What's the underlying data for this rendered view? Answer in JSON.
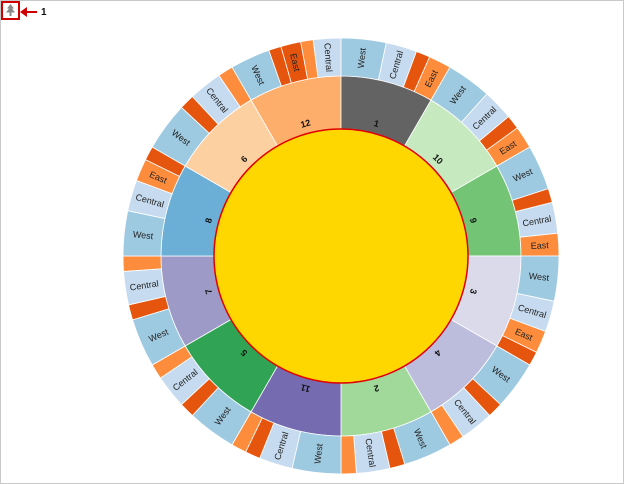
{
  "callout": {
    "number": "1",
    "icon": "tree-icon"
  },
  "chart_data": {
    "type": "sunburst",
    "center_color": "#FFD700",
    "center_border": "#E00000",
    "groups": [
      {
        "label": "12",
        "color": "#FDAE6B",
        "children": [
          {
            "label": "West",
            "color": "#9ECAE1"
          },
          {
            "label": "",
            "color": "#E6550D"
          },
          {
            "label": "East",
            "color": "#E6550D"
          },
          {
            "label": "",
            "color": "#FD8D3C"
          },
          {
            "label": "Central",
            "color": "#C6DBEF"
          }
        ]
      },
      {
        "label": "1",
        "color": "#636363",
        "children": [
          {
            "label": "West",
            "color": "#9ECAE1"
          },
          {
            "label": "Central",
            "color": "#C6DBEF"
          },
          {
            "label": "",
            "color": "#E6550D"
          },
          {
            "label": "East",
            "color": "#FD8D3C"
          }
        ]
      },
      {
        "label": "10",
        "color": "#C7E9C0",
        "children": [
          {
            "label": "West",
            "color": "#9ECAE1"
          },
          {
            "label": "Central",
            "color": "#C6DBEF"
          },
          {
            "label": "",
            "color": "#E6550D"
          },
          {
            "label": "East",
            "color": "#FD8D3C"
          }
        ]
      },
      {
        "label": "9",
        "color": "#74C476",
        "children": [
          {
            "label": "West",
            "color": "#9ECAE1"
          },
          {
            "label": "",
            "color": "#E6550D"
          },
          {
            "label": "Central",
            "color": "#C6DBEF"
          },
          {
            "label": "East",
            "color": "#FD8D3C"
          }
        ]
      },
      {
        "label": "3",
        "color": "#DADAEB",
        "children": [
          {
            "label": "West",
            "color": "#9ECAE1"
          },
          {
            "label": "Central",
            "color": "#C6DBEF"
          },
          {
            "label": "East",
            "color": "#FD8D3C"
          },
          {
            "label": "",
            "color": "#E6550D"
          }
        ]
      },
      {
        "label": "4",
        "color": "#BCBDDC",
        "children": [
          {
            "label": "West",
            "color": "#9ECAE1"
          },
          {
            "label": "",
            "color": "#E6550D"
          },
          {
            "label": "Central",
            "color": "#C6DBEF"
          },
          {
            "label": "",
            "color": "#FD8D3C"
          }
        ]
      },
      {
        "label": "2",
        "color": "#A1D99B",
        "children": [
          {
            "label": "West",
            "color": "#9ECAE1"
          },
          {
            "label": "",
            "color": "#E6550D"
          },
          {
            "label": "Central",
            "color": "#C6DBEF"
          },
          {
            "label": "",
            "color": "#FD8D3C"
          }
        ]
      },
      {
        "label": "11",
        "color": "#756BB1",
        "children": [
          {
            "label": "West",
            "color": "#9ECAE1"
          },
          {
            "label": "Central",
            "color": "#C6DBEF"
          },
          {
            "label": "",
            "color": "#E6550D"
          },
          {
            "label": "",
            "color": "#FD8D3C"
          }
        ]
      },
      {
        "label": "5",
        "color": "#31A354",
        "children": [
          {
            "label": "West",
            "color": "#9ECAE1"
          },
          {
            "label": "",
            "color": "#E6550D"
          },
          {
            "label": "Central",
            "color": "#C6DBEF"
          },
          {
            "label": "",
            "color": "#FD8D3C"
          }
        ]
      },
      {
        "label": "7",
        "color": "#9E9AC8",
        "children": [
          {
            "label": "West",
            "color": "#9ECAE1"
          },
          {
            "label": "",
            "color": "#E6550D"
          },
          {
            "label": "Central",
            "color": "#C6DBEF"
          },
          {
            "label": "",
            "color": "#FD8D3C"
          }
        ]
      },
      {
        "label": "8",
        "color": "#6BAED6",
        "children": [
          {
            "label": "West",
            "color": "#9ECAE1"
          },
          {
            "label": "Central",
            "color": "#C6DBEF"
          },
          {
            "label": "East",
            "color": "#FD8D3C"
          },
          {
            "label": "",
            "color": "#E6550D"
          }
        ]
      },
      {
        "label": "6",
        "color": "#FDD0A2",
        "children": [
          {
            "label": "West",
            "color": "#9ECAE1"
          },
          {
            "label": "",
            "color": "#E6550D"
          },
          {
            "label": "Central",
            "color": "#C6DBEF"
          },
          {
            "label": "",
            "color": "#FD8D3C"
          }
        ]
      }
    ]
  }
}
